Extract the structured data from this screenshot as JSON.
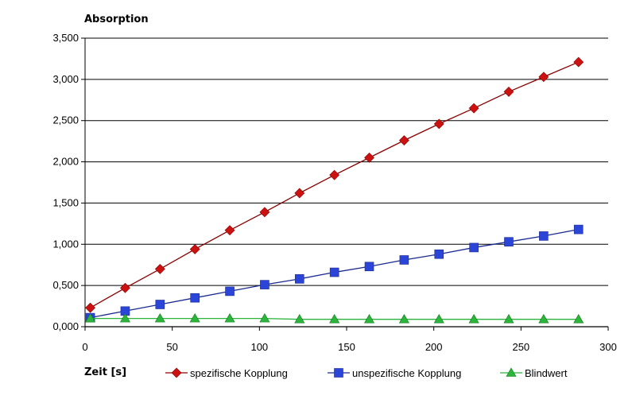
{
  "chart_data": {
    "type": "line",
    "ylabel": "Absorption",
    "xlabel": "Zeit [s]",
    "xlim": [
      0,
      300
    ],
    "ylim": [
      0,
      3.5
    ],
    "x_ticks": [
      "0",
      "50",
      "100",
      "150",
      "200",
      "250",
      "300"
    ],
    "y_ticks": [
      "0,000",
      "0,500",
      "1,000",
      "1,500",
      "2,000",
      "2,500",
      "3,000",
      "3,500"
    ],
    "grid": "horizontal",
    "legend_position": "bottom",
    "x": [
      3,
      23,
      43,
      63,
      83,
      103,
      123,
      143,
      163,
      183,
      203,
      223,
      243,
      263,
      283
    ],
    "series": [
      {
        "name": "spezifische Kopplung",
        "color": "#cc1111",
        "marker": "diamond",
        "values": [
          0.23,
          0.47,
          0.7,
          0.94,
          1.17,
          1.39,
          1.62,
          1.84,
          2.05,
          2.26,
          2.46,
          2.65,
          2.85,
          3.03,
          3.21
        ]
      },
      {
        "name": "unspezifische Kopplung",
        "color": "#2a45d8",
        "marker": "square",
        "values": [
          0.11,
          0.19,
          0.27,
          0.35,
          0.43,
          0.51,
          0.58,
          0.66,
          0.73,
          0.81,
          0.88,
          0.96,
          1.03,
          1.1,
          1.18
        ]
      },
      {
        "name": "Blindwert",
        "color": "#2bb53a",
        "marker": "triangle",
        "values": [
          0.1,
          0.1,
          0.1,
          0.1,
          0.1,
          0.1,
          0.09,
          0.09,
          0.09,
          0.09,
          0.09,
          0.09,
          0.09,
          0.09,
          0.09
        ]
      }
    ]
  }
}
